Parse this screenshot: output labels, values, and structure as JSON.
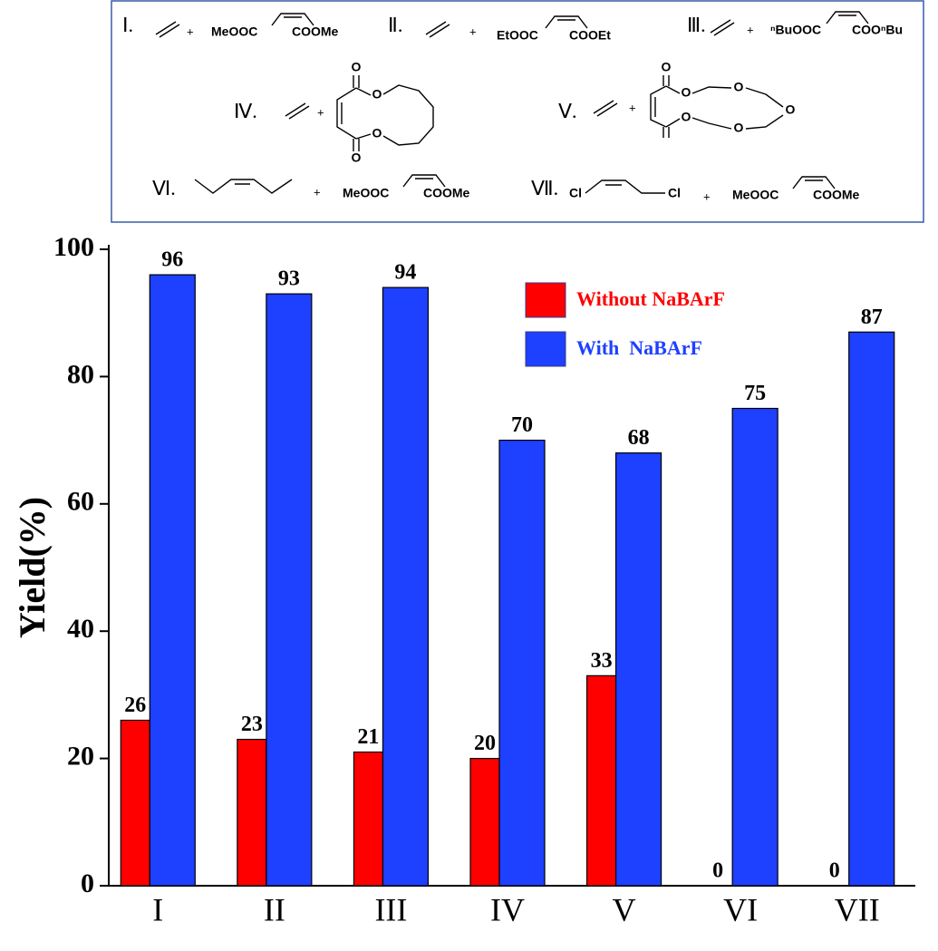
{
  "scheme": [
    {
      "label": "Ⅰ.",
      "plus": "+",
      "left": "MeOOC",
      "right": "COOMe"
    },
    {
      "label": "Ⅱ.",
      "plus": "+",
      "left": "EtOOC",
      "right": "COOEt"
    },
    {
      "label": "Ⅲ.",
      "plus": "+",
      "left": "ⁿBuOOC",
      "right": "COOⁿBu"
    },
    {
      "label": "Ⅳ.",
      "plus": "+",
      "atoms": [
        "O",
        "O",
        "O",
        "O"
      ]
    },
    {
      "label": "Ⅴ.",
      "plus": "+",
      "atoms": [
        "O",
        "O",
        "O",
        "O",
        "O",
        "O"
      ]
    },
    {
      "label": "Ⅵ.",
      "plus": "+",
      "left": "MeOOC",
      "right": "COOMe"
    },
    {
      "label": "Ⅶ.",
      "plus": "+",
      "atoms": [
        "Cl",
        "Cl"
      ],
      "left": "MeOOC",
      "right": "COOMe"
    }
  ],
  "chart_data": {
    "type": "bar",
    "ylabel": "Yield(%)",
    "categories": [
      "I",
      "II",
      "III",
      "IV",
      "V",
      "VI",
      "VII"
    ],
    "series": [
      {
        "name": "Without NaBArF",
        "color": "#ff0000",
        "values": [
          26,
          23,
          21,
          20,
          33,
          0,
          0
        ]
      },
      {
        "name": "With  NaBArF",
        "color": "#1e40ff",
        "values": [
          96,
          93,
          94,
          70,
          68,
          75,
          87
        ]
      }
    ],
    "ylim": [
      0,
      100
    ],
    "yticks": [
      0,
      20,
      40,
      60,
      80,
      100
    ],
    "legend": "upper right"
  }
}
